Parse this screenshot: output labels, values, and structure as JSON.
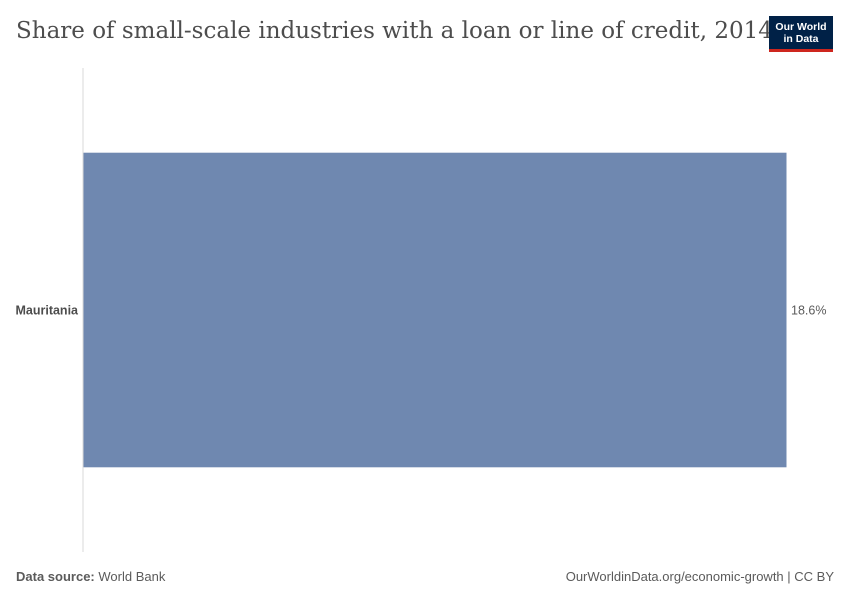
{
  "title": "Share of small-scale industries with a loan or line of credit, 2014",
  "logo": {
    "line1": "Our World",
    "line2": "in Data",
    "bg_color": "#002147",
    "accent_color": "#ce261e"
  },
  "footer": {
    "source_label": "Data source:",
    "source_value": "World Bank",
    "url_text": "OurWorldinData.org/economic-growth | CC BY"
  },
  "chart_data": {
    "type": "bar",
    "orientation": "horizontal",
    "title": "Share of small-scale industries with a loan or line of credit, 2014",
    "categories": [
      "Mauritania"
    ],
    "values": [
      18.6
    ],
    "value_labels": [
      "18.6%"
    ],
    "unit": "%",
    "xlim": [
      0,
      18.6
    ],
    "grid": false,
    "bar_color": "#6f88b0"
  }
}
